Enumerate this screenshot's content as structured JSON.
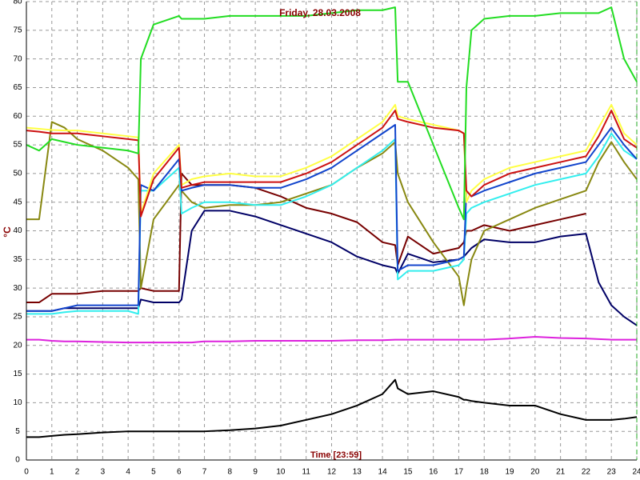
{
  "chart_data": {
    "type": "line",
    "title": "Friday, 28.03.2008",
    "ylabel": "°C",
    "xlabel": "Time [23:59]",
    "x": [
      0,
      0.5,
      1,
      1.5,
      2,
      3,
      4,
      4.4,
      4.5,
      5,
      6,
      6.1,
      6.5,
      7,
      8,
      9,
      10,
      11,
      12,
      13,
      14,
      14.5,
      14.6,
      15,
      16,
      17,
      17.2,
      17.3,
      17.5,
      18,
      19,
      20,
      21,
      22,
      22.5,
      23,
      23.5,
      24
    ],
    "series": [
      {
        "color": "#dd22dd",
        "values": [
          21,
          21,
          20.8,
          20.7,
          20.7,
          20.6,
          20.5,
          20.5,
          20.5,
          20.5,
          20.5,
          20.5,
          20.5,
          20.7,
          20.7,
          20.8,
          20.8,
          20.8,
          20.8,
          20.9,
          20.9,
          21,
          21,
          21,
          21,
          21,
          21,
          21,
          21,
          21,
          21.2,
          21.5,
          21.3,
          21.2,
          21.1,
          21,
          21,
          21
        ]
      },
      {
        "color": "#000000",
        "values": [
          4,
          4,
          4.2,
          4.4,
          4.5,
          4.8,
          5,
          5,
          5,
          5,
          5,
          5,
          5,
          5,
          5.2,
          5.5,
          6,
          7,
          8,
          9.5,
          11.5,
          14,
          12.5,
          11.5,
          12,
          11,
          10.5,
          10.5,
          10.3,
          10,
          9.5,
          9.5,
          8,
          7,
          7,
          7,
          7.2,
          7.5
        ]
      },
      {
        "color": "#000066",
        "values": [
          26,
          26,
          26,
          26.5,
          26.5,
          26.5,
          26.5,
          26.5,
          28,
          27.5,
          27.5,
          28,
          40,
          43.5,
          43.5,
          42.5,
          41,
          39.5,
          38,
          35.5,
          34,
          33.5,
          32.5,
          36,
          34.5,
          35,
          35.5,
          36,
          37,
          38.5,
          38,
          38,
          39,
          39.5,
          31,
          27,
          25,
          23.5
        ]
      },
      {
        "color": "#770000",
        "values": [
          27.5,
          27.5,
          29,
          29,
          29,
          29.5,
          29.5,
          29.5,
          30,
          29.5,
          29.5,
          50,
          48,
          48,
          48,
          47.5,
          46,
          44,
          43,
          41.5,
          38,
          37.5,
          34,
          39,
          36,
          37,
          38,
          40,
          40,
          41,
          40,
          41,
          42,
          43,
          null,
          null,
          null,
          null
        ]
      },
      {
        "color": "#888811",
        "values": [
          42,
          42,
          59,
          58,
          56,
          54,
          51,
          49,
          30,
          42,
          48,
          47,
          45,
          44,
          44.5,
          44.5,
          45,
          46.5,
          48,
          51,
          53.5,
          55.5,
          50,
          45,
          38,
          32,
          27,
          30,
          35,
          40,
          42,
          44,
          45.5,
          47,
          52,
          55.5,
          52,
          49
        ]
      },
      {
        "color": "#33eeee",
        "values": [
          25.5,
          25.5,
          25.5,
          25.8,
          26,
          26,
          26,
          25.5,
          47,
          47,
          51,
          43,
          44,
          45,
          45,
          44.5,
          44.5,
          46,
          48,
          51,
          54,
          56,
          31.5,
          33,
          33,
          34,
          35,
          43,
          44,
          45,
          46.5,
          48,
          49,
          50,
          53,
          57,
          54,
          52.5
        ]
      },
      {
        "color": "#1144cc",
        "values": [
          26,
          26,
          26,
          26.5,
          27,
          27,
          27,
          27,
          48,
          47,
          52.5,
          47,
          47.5,
          48,
          48,
          47.5,
          47.5,
          49,
          51,
          54,
          57,
          58.5,
          33,
          34,
          34,
          35,
          35.5,
          47,
          46,
          47,
          48.5,
          50,
          51,
          52,
          55,
          58,
          55,
          52.5
        ]
      },
      {
        "color": "#ffff44",
        "values": [
          58,
          57.8,
          57.6,
          57.5,
          57.5,
          57,
          56.5,
          56.3,
          43,
          50,
          55,
          48,
          49,
          49.5,
          50,
          49.5,
          49.5,
          51,
          53,
          56,
          59,
          62,
          60,
          59.5,
          58.5,
          57.5,
          57,
          45,
          47,
          49,
          51,
          52,
          53,
          54,
          58,
          62,
          57,
          55
        ]
      },
      {
        "color": "#cc1111",
        "values": [
          57.5,
          57.3,
          57,
          57,
          57,
          56.5,
          56,
          55.8,
          42.5,
          49,
          54.5,
          47.5,
          48,
          48.5,
          48.5,
          48.5,
          48.5,
          50,
          52,
          55,
          58,
          61,
          59.5,
          59,
          58,
          57.5,
          57,
          47,
          46,
          48,
          50,
          51,
          52,
          53,
          56.5,
          61,
          56,
          54.5
        ]
      },
      {
        "color": "#22dd22",
        "values": [
          55,
          54,
          56,
          55.5,
          55,
          54.5,
          54,
          53.5,
          70,
          76,
          77.5,
          77,
          77,
          77,
          77.5,
          77.5,
          77.5,
          77.5,
          78,
          78.5,
          78.5,
          79,
          66,
          66,
          55,
          44,
          42,
          65,
          75,
          77,
          77.5,
          77.5,
          78,
          78,
          78,
          79,
          70,
          66
        ]
      }
    ],
    "xlim": [
      0,
      24
    ],
    "xticks": [
      0,
      1,
      2,
      3,
      4,
      5,
      6,
      7,
      8,
      9,
      10,
      11,
      12,
      13,
      14,
      15,
      16,
      17,
      18,
      19,
      20,
      21,
      22,
      23,
      24
    ],
    "ylim": [
      0,
      80
    ],
    "yticks": [
      0,
      5,
      10,
      15,
      20,
      25,
      30,
      35,
      40,
      45,
      50,
      55,
      60,
      65,
      70,
      75,
      80
    ],
    "grid": true
  }
}
